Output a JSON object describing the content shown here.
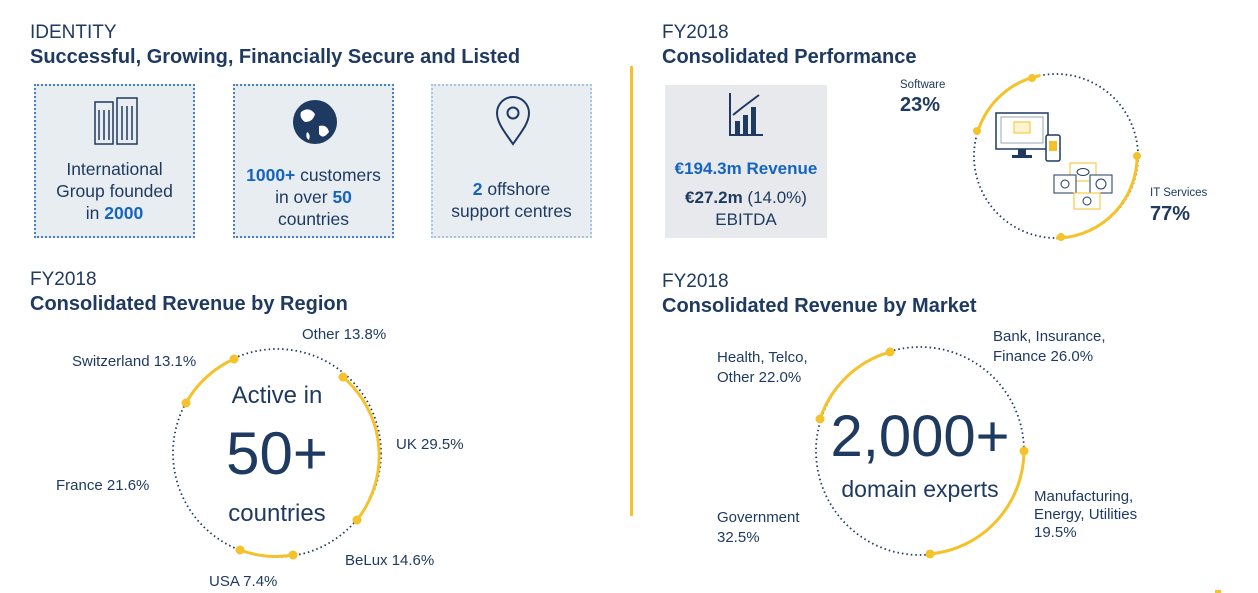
{
  "identity": {
    "caption": "IDENTITY",
    "title": "Successful, Growing, Financially Secure and Listed",
    "box1": {
      "line1": "International",
      "line2": "Group founded",
      "line3_pre": "in ",
      "line3_bold": "2000"
    },
    "box2": {
      "line1_bold": "1000+",
      "line1_rest": " customers",
      "line2_pre": "in over ",
      "line2_bold": "50",
      "line3": "countries"
    },
    "box3": {
      "line1_bold": "2",
      "line1_rest": " offshore",
      "line2": "support centres"
    }
  },
  "performance": {
    "caption": "FY2018",
    "title": "Consolidated Performance",
    "revenue": "€194.3m Revenue",
    "ebitda_bold": "€27.2m",
    "ebitda_pct": " (14.0%)",
    "ebitda_label": "EBITDA",
    "software_label": "Software",
    "software_pct": "23%",
    "it_label": "IT Services",
    "it_pct": "77%"
  },
  "region": {
    "caption": "FY2018",
    "title": "Consolidated Revenue by Region",
    "center_top": "Active in",
    "center_big": "50+",
    "center_bottom": "countries",
    "labels": {
      "other": "Other 13.8%",
      "switzerland": "Switzerland 13.1%",
      "uk": "UK 29.5%",
      "france": "France 21.6%",
      "belux": "BeLux 14.6%",
      "usa": "USA 7.4%"
    }
  },
  "market": {
    "caption": "FY2018",
    "title": "Consolidated Revenue by Market",
    "center_big": "2,000+",
    "center_bottom": "domain experts",
    "labels": {
      "bank_1": "Bank, Insurance,",
      "bank_2": "Finance 26.0%",
      "health_1": "Health, Telco,",
      "health_2": "Other 22.0%",
      "gov_1": "Government",
      "gov_2": "32.5%",
      "manu_1": "Manufacturing,",
      "manu_2": "Energy, Utilities",
      "manu_3": "19.5%"
    }
  },
  "colors": {
    "accent": "#f5c22b",
    "navy": "#1f3a60",
    "blue": "#1565c0",
    "box_bg": "#e8edf2"
  }
}
